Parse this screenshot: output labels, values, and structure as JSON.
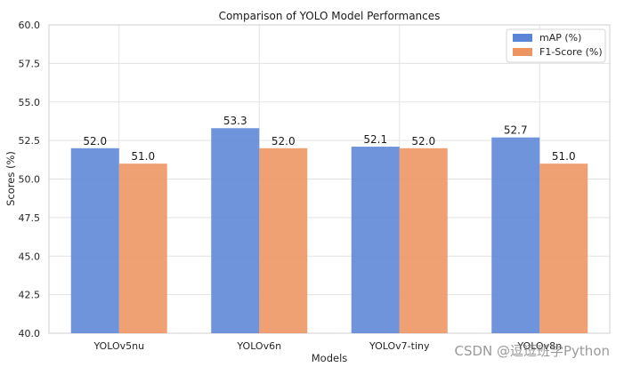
{
  "chart_data": {
    "type": "bar",
    "title": "Comparison of YOLO Model Performances",
    "xlabel": "Models",
    "ylabel": "Scores (%)",
    "categories": [
      "YOLOv5nu",
      "YOLOv6n",
      "YOLOv7-tiny",
      "YOLOv8n"
    ],
    "ylim": [
      40.0,
      60.0
    ],
    "yticks": [
      "40.0",
      "42.5",
      "45.0",
      "47.5",
      "50.0",
      "52.5",
      "55.0",
      "57.5",
      "60.0"
    ],
    "grid": true,
    "legend_position": "top-right",
    "series": [
      {
        "name": "mAP (%)",
        "values": [
          52.0,
          53.3,
          52.1,
          52.7
        ],
        "labels": [
          "52.0",
          "53.3",
          "52.1",
          "52.7"
        ],
        "color": "#5b85d6"
      },
      {
        "name": "F1-Score (%)",
        "values": [
          51.0,
          52.0,
          52.0,
          51.0
        ],
        "labels": [
          "51.0",
          "52.0",
          "52.0",
          "51.0"
        ],
        "color": "#ee9461"
      }
    ]
  },
  "watermark": "CSDN @逗逗班学Python"
}
